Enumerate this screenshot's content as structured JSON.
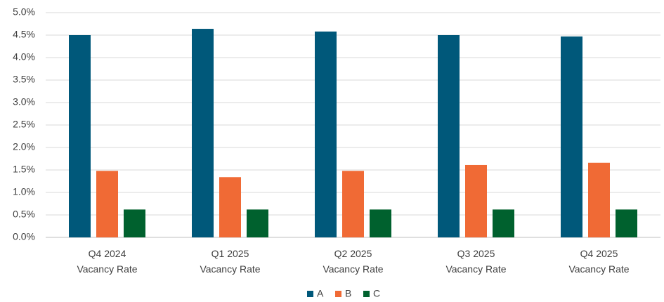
{
  "chart_data": {
    "type": "bar",
    "categories": [
      [
        "Q4 2024",
        "Vacancy Rate"
      ],
      [
        "Q1 2025",
        "Vacancy Rate"
      ],
      [
        "Q2 2025",
        "Vacancy Rate"
      ],
      [
        "Q3 2025",
        "Vacancy Rate"
      ],
      [
        "Q4 2025",
        "Vacancy Rate"
      ]
    ],
    "series": [
      {
        "name": "A",
        "color": "#00587a",
        "values": [
          4.5,
          4.64,
          4.58,
          4.5,
          4.47
        ]
      },
      {
        "name": "B",
        "color": "#f06a35",
        "values": [
          1.48,
          1.34,
          1.48,
          1.61,
          1.66
        ]
      },
      {
        "name": "C",
        "color": "#00612e",
        "values": [
          0.62,
          0.62,
          0.62,
          0.62,
          0.62
        ]
      }
    ],
    "ylim": [
      0,
      5
    ],
    "yticks": [
      {
        "value": 0,
        "label": "0.0%"
      },
      {
        "value": 0.5,
        "label": "0.5%"
      },
      {
        "value": 1,
        "label": "1.0%"
      },
      {
        "value": 1.5,
        "label": "1.5%"
      },
      {
        "value": 2,
        "label": "2.0%"
      },
      {
        "value": 2.5,
        "label": "2.5%"
      },
      {
        "value": 3,
        "label": "3.0%"
      },
      {
        "value": 3.5,
        "label": "3.5%"
      },
      {
        "value": 4,
        "label": "4.0%"
      },
      {
        "value": 4.5,
        "label": "4.5%"
      },
      {
        "value": 5,
        "label": "5.0%"
      }
    ],
    "grid": true,
    "legend": "bottom"
  }
}
